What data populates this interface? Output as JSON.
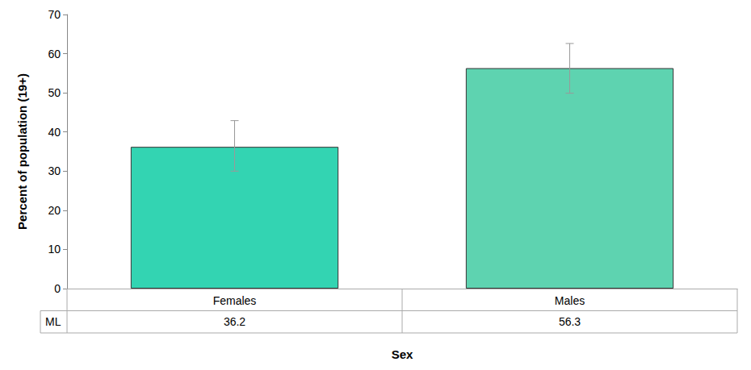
{
  "chart_data": {
    "type": "bar",
    "x_label": "Sex",
    "y_label": "Percent of population (19+)",
    "categories": [
      "Females",
      "Males"
    ],
    "values": [
      36.2,
      56.3
    ],
    "error_lower": [
      30.0,
      49.9
    ],
    "error_upper": [
      42.9,
      62.6
    ],
    "table_row_label": "ML",
    "colors": [
      "#33d4b2",
      "#5ed3b0"
    ],
    "ylim": [
      0,
      70
    ],
    "yticks": [
      0,
      10,
      20,
      30,
      40,
      50,
      60,
      70
    ],
    "grid": false
  }
}
